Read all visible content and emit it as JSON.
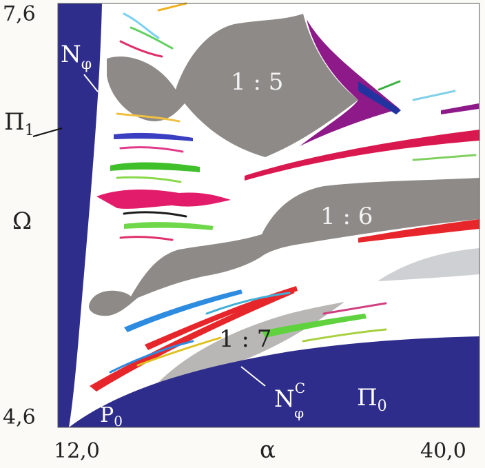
{
  "chart_data": {
    "type": "heatmap",
    "x_axis": {
      "label": "α",
      "min_label": "12,0",
      "max_label": "40,0",
      "range": [
        12.0,
        40.0
      ]
    },
    "y_axis": {
      "label": "Ω",
      "min_label": "4,6",
      "max_label": "7,6",
      "range": [
        4.6,
        7.6
      ]
    },
    "regions": {
      "r15": {
        "label": "1 : 5",
        "color": "#8e8a87"
      },
      "r16": {
        "label": "1 : 6",
        "color": "#8e8a87"
      },
      "r17": {
        "label": "1 : 7",
        "color": "#b9b7b6"
      },
      "pi1": {
        "label": "Π₁",
        "color": "#2e2d8c"
      },
      "pi0": {
        "label": "Π₀",
        "color": "#2e2d8c"
      }
    },
    "annotations": {
      "n_phi": "N",
      "n_phi_sub": "φ",
      "n_phi_c": "N",
      "n_phi_c_sup": "C",
      "n_phi_c_sub": "φ",
      "pi1_base": "Π",
      "pi1_sub": "1",
      "pi0_base": "Π",
      "pi0_sub": "0",
      "p0_base": "P",
      "p0_sub": "0"
    },
    "colors": {
      "background": "#ffffff",
      "blue_region": "#2e2d8c",
      "gray_tongue": "#8e8a87",
      "light_gray_tongue": "#b9b7b6",
      "magenta": "#8d1a88",
      "crimson": "#d9184f",
      "red": "#e6262a",
      "green": "#5fd23e",
      "blue_band": "#2d8be0"
    }
  }
}
